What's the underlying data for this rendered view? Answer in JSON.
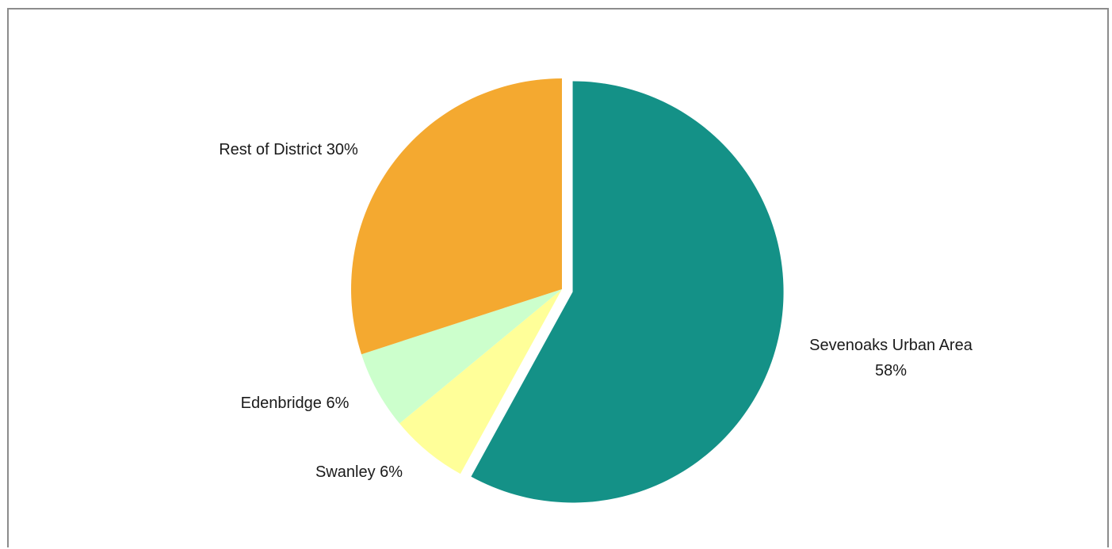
{
  "chart_data": {
    "type": "pie",
    "slices": [
      {
        "label": "Sevenoaks Urban Area",
        "value": 58,
        "display_label": "Sevenoaks Urban Area",
        "display_value": "58%",
        "color": "#149187",
        "exploded": true
      },
      {
        "label": "Swanley",
        "value": 6,
        "display_label": "Swanley 6%",
        "color": "#ffff99",
        "exploded": false
      },
      {
        "label": "Edenbridge",
        "value": 6,
        "display_label": "Edenbridge 6%",
        "color": "#ccffcc",
        "exploded": false
      },
      {
        "label": "Rest of District",
        "value": 30,
        "display_label": "Rest of District 30%",
        "color": "#f4a930",
        "exploded": false
      }
    ],
    "start_angle_deg": 0,
    "direction": "clockwise",
    "title": ""
  }
}
